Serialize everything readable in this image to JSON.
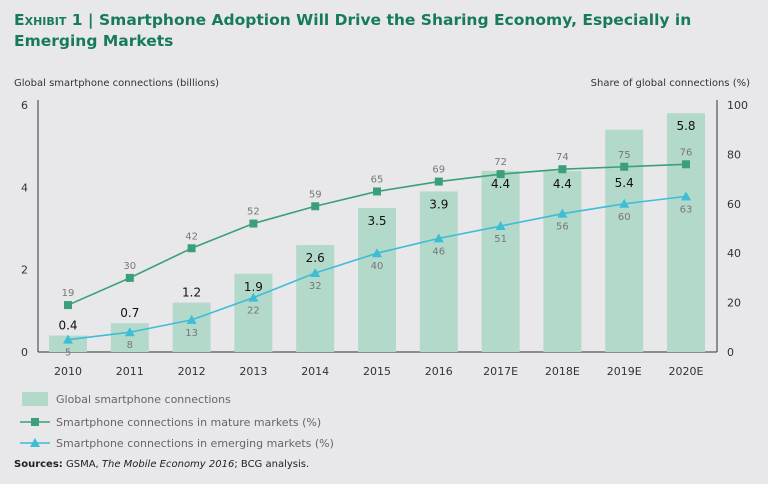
{
  "title": {
    "exhibit": "Exhibit 1",
    "text": "Smartphone Adoption Will Drive the Sharing Economy, Especially in Emerging Markets"
  },
  "colors": {
    "bar": "#b3d9ca",
    "mature": "#3b9f7a",
    "emerging": "#3dbdd6",
    "title": "#177a5c"
  },
  "chart_data": {
    "type": "bar+line",
    "categories": [
      "2010",
      "2011",
      "2012",
      "2013",
      "2014",
      "2015",
      "2016",
      "2017E",
      "2018E",
      "2019E",
      "2020E"
    ],
    "y_left_label": "Global smartphone connections (billions)",
    "y_right_label": "Share of global connections (%)",
    "y_left_range": [
      0,
      6
    ],
    "y_left_ticks": [
      "0",
      "2",
      "4",
      "6"
    ],
    "y_right_range": [
      0,
      100
    ],
    "y_right_ticks": [
      "0",
      "20",
      "40",
      "60",
      "80",
      "100"
    ],
    "series": [
      {
        "name": "Global smartphone connections",
        "type": "bar",
        "axis": "left",
        "values": [
          0.4,
          0.7,
          1.2,
          1.9,
          2.6,
          3.5,
          3.9,
          4.4,
          4.4,
          5.4,
          5.8
        ],
        "labels": [
          "0.4",
          "0.7",
          "1.2",
          "1.9",
          "2.6",
          "3.5",
          "3.9",
          "4.4",
          "4.4",
          "5.4",
          "5.8"
        ]
      },
      {
        "name": "Smartphone connections in mature markets (%)",
        "type": "line",
        "marker": "square",
        "axis": "right",
        "values": [
          19,
          30,
          42,
          52,
          59,
          65,
          69,
          72,
          74,
          75,
          76
        ]
      },
      {
        "name": "Smartphone connections in emerging markets (%)",
        "type": "line",
        "marker": "triangle",
        "axis": "right",
        "values": [
          5,
          8,
          13,
          22,
          32,
          40,
          46,
          51,
          56,
          60,
          63
        ]
      }
    ],
    "legend_position": "bottom-left"
  },
  "sources": {
    "label": "Sources:",
    "text1": " GSMA, ",
    "italic": "The Mobile Economy 2016",
    "text2": "; BCG analysis."
  }
}
